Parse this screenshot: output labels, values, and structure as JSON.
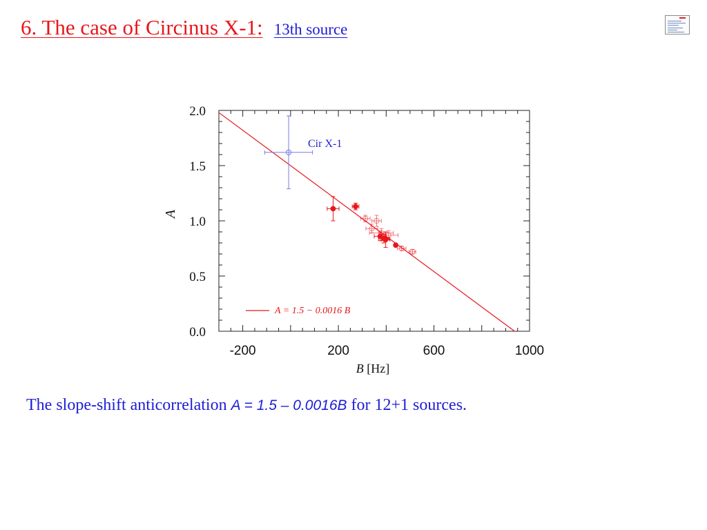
{
  "slide": {
    "title": "6. The case of Circinus X-1:",
    "subtitle": "13th source",
    "caption_prefix": "The slope-shift anticorrelation",
    "caption_equation": "A = 1.5 – 0.0016B",
    "caption_suffix": "for 12+1 sources."
  },
  "colors": {
    "title": "#e8161b",
    "text": "#1d1dd6",
    "data": "#e8161b",
    "cir": "#7a7ae6"
  },
  "chart_data": {
    "type": "scatter",
    "xlabel": "B",
    "xunit": "[Hz]",
    "ylabel": "A",
    "xlim": [
      -300,
      1000
    ],
    "ylim": [
      0,
      2
    ],
    "xticks": [
      {
        "value": -200,
        "label": "-200"
      },
      {
        "value": 200,
        "label": "200"
      },
      {
        "value": 600,
        "label": "600"
      },
      {
        "value": 1000,
        "label": "1000"
      }
    ],
    "yticks": [
      {
        "value": 0,
        "label": "0.0"
      },
      {
        "value": 0.5,
        "label": "0.5"
      },
      {
        "value": 1.0,
        "label": "1.0"
      },
      {
        "value": 1.5,
        "label": "1.5"
      },
      {
        "value": 2.0,
        "label": "2.0"
      }
    ],
    "fit": {
      "intercept": 1.5,
      "slope": -0.0016,
      "legend": "A = 1.5 − 0.0016 B"
    },
    "annotation": "Cir X-1",
    "series": [
      {
        "marker": "filled",
        "points": [
          {
            "x": 178,
            "y": 1.11,
            "xerr": 25,
            "yerr": 0.11
          },
          {
            "x": 272,
            "y": 1.13,
            "xerr": 14,
            "yerr": 0.03
          },
          {
            "x": 375,
            "y": 0.86,
            "xerr": 25,
            "yerr": 0.04
          },
          {
            "x": 390,
            "y": 0.84,
            "xerr": 22,
            "yerr": 0.04
          },
          {
            "x": 398,
            "y": 0.83,
            "xerr": 18,
            "yerr": 0.07
          },
          {
            "x": 440,
            "y": 0.78,
            "xerr": 0,
            "yerr": 0
          }
        ]
      },
      {
        "marker": "open",
        "points": [
          {
            "x": 313,
            "y": 1.02,
            "xerr": 20,
            "yerr": 0.03
          },
          {
            "x": 340,
            "y": 0.93,
            "xerr": 25,
            "yerr": 0.04
          },
          {
            "x": 360,
            "y": 1.0,
            "xerr": 20,
            "yerr": 0.05
          },
          {
            "x": 380,
            "y": 0.89,
            "xerr": 50,
            "yerr": 0.04
          },
          {
            "x": 410,
            "y": 0.87,
            "xerr": 40,
            "yerr": 0.04
          },
          {
            "x": 465,
            "y": 0.75,
            "xerr": 18,
            "yerr": 0.02
          },
          {
            "x": 510,
            "y": 0.72,
            "xerr": 14,
            "yerr": 0.02
          }
        ]
      },
      {
        "marker": "open",
        "color_key": "cir",
        "points": [
          {
            "x": -8,
            "y": 1.62,
            "xerr": 100,
            "yerr": 0.33
          }
        ]
      }
    ]
  }
}
